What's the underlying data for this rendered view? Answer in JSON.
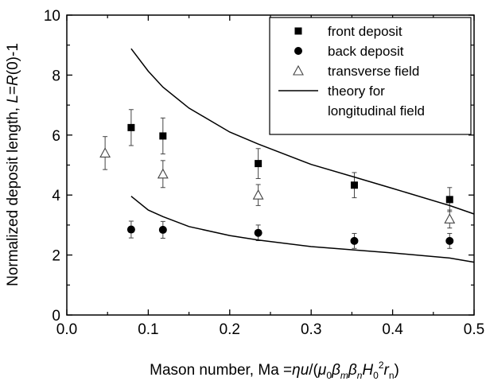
{
  "chart_data": {
    "type": "scatter",
    "xlabel": {
      "prefix": "Mason number, Ma =",
      "eta": "η",
      "u": "u",
      "slash": "/(",
      "mu": "μ",
      "zero": "0",
      "beta": "β",
      "m": "m",
      "n": "n",
      "H": "H",
      "two": "2",
      "r": "r",
      "close": ")"
    },
    "ylabel": {
      "prefix": "Normalized deposit length, ",
      "L": "L",
      "eq": "=",
      "R": "R",
      "suffix": "(0)-1"
    },
    "xlim": [
      0.0,
      0.5
    ],
    "ylim": [
      0,
      10
    ],
    "xticks": [
      "0.0",
      "0.1",
      "0.2",
      "0.3",
      "0.4",
      "0.5"
    ],
    "yticks": [
      "0",
      "2",
      "4",
      "6",
      "8",
      "10"
    ],
    "grid": false,
    "legend_position": "top-right",
    "series": [
      {
        "name": "front deposit",
        "marker": "filled-square",
        "x": [
          0.079,
          0.118,
          0.235,
          0.353,
          0.47
        ],
        "y": [
          6.25,
          5.97,
          5.05,
          4.33,
          3.85
        ],
        "err": [
          0.6,
          0.6,
          0.5,
          0.42,
          0.4
        ]
      },
      {
        "name": "back deposit",
        "marker": "filled-circle",
        "x": [
          0.079,
          0.118,
          0.235,
          0.353,
          0.47
        ],
        "y": [
          2.85,
          2.84,
          2.74,
          2.47,
          2.47
        ],
        "err": [
          0.28,
          0.28,
          0.26,
          0.25,
          0.25
        ]
      },
      {
        "name": "transverse field",
        "marker": "open-triangle",
        "x": [
          0.047,
          0.118,
          0.235,
          0.47
        ],
        "y": [
          5.4,
          4.7,
          4.0,
          3.2
        ],
        "err": [
          0.55,
          0.45,
          0.35,
          0.3
        ]
      },
      {
        "name": "theory for longitudinal field",
        "name_lines": [
          "theory for",
          "longitudinal field"
        ],
        "marker": "line",
        "curves": [
          {
            "x": [
              0.079,
              0.1,
              0.118,
              0.15,
              0.2,
              0.235,
              0.3,
              0.353,
              0.4,
              0.47,
              0.5
            ],
            "y": [
              8.88,
              8.13,
              7.6,
              6.9,
              6.1,
              5.7,
              5.02,
              4.6,
              4.22,
              3.65,
              3.37
            ]
          },
          {
            "x": [
              0.079,
              0.1,
              0.118,
              0.15,
              0.2,
              0.235,
              0.3,
              0.353,
              0.4,
              0.47,
              0.5
            ],
            "y": [
              3.96,
              3.5,
              3.28,
              2.95,
              2.65,
              2.5,
              2.28,
              2.17,
              2.07,
              1.9,
              1.76
            ]
          }
        ]
      }
    ]
  }
}
